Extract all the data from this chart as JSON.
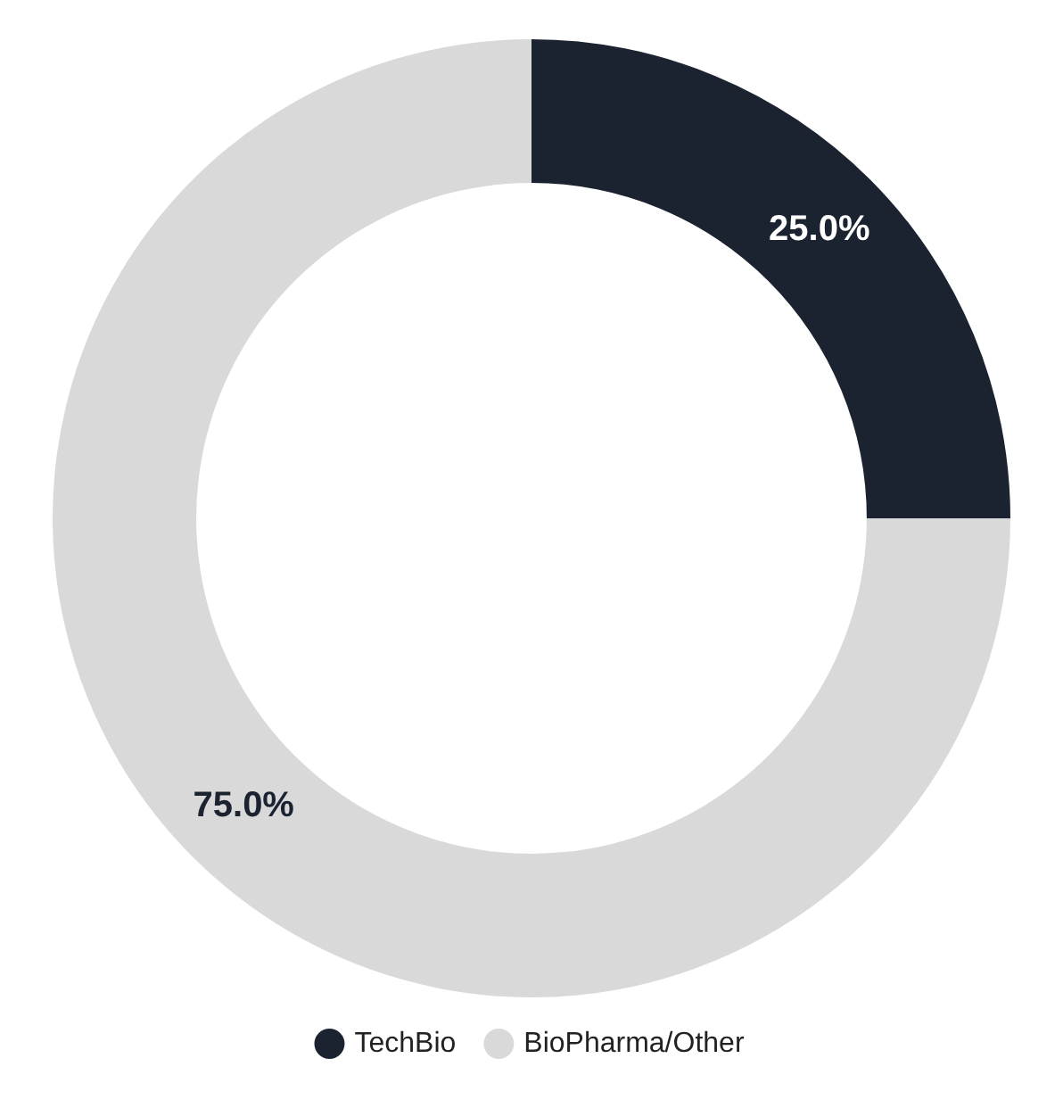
{
  "chart_data": {
    "type": "donut",
    "categories": [
      "TechBio",
      "BioPharma/Other"
    ],
    "values": [
      25,
      75
    ],
    "colors": [
      "#1b2230",
      "#d9d9d9"
    ],
    "value_labels": [
      "25.0%",
      "75.0%"
    ],
    "legend": "bottom"
  }
}
